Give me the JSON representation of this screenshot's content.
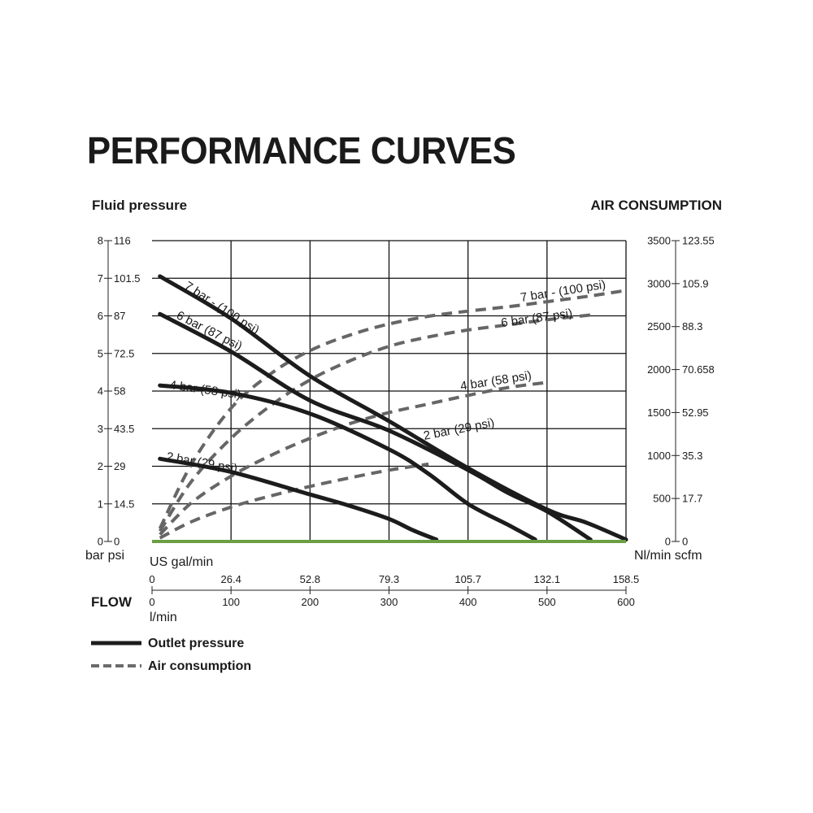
{
  "page": {
    "title": "PERFORMANCE CURVES",
    "left_axis_title": "Fluid pressure",
    "right_axis_title": "AIR CONSUMPTION"
  },
  "chart_data": {
    "type": "line",
    "title": "PERFORMANCE CURVES",
    "x_axis": {
      "xlabel": "FLOW",
      "unit_primary": "l/min",
      "unit_secondary": "US gal/min",
      "range": [
        0,
        600
      ],
      "ticks_lmin": [
        0,
        100,
        200,
        300,
        400,
        500,
        600
      ],
      "ticks_lmin_labels": [
        "0",
        "100",
        "200",
        "300",
        "400",
        "500",
        "600"
      ],
      "ticks_usgal_labels": [
        "0",
        "26.4",
        "52.8",
        "79.3",
        "105.7",
        "132.1",
        "158.5"
      ]
    },
    "y_left": {
      "ylabel": "Fluid pressure",
      "unit_primary": "bar",
      "unit_secondary": "psi",
      "range": [
        0,
        8
      ],
      "ticks_bar": [
        0,
        1,
        2,
        3,
        4,
        5,
        6,
        7,
        8
      ],
      "ticks_bar_labels": [
        "0",
        "1",
        "2",
        "3",
        "4",
        "5",
        "6",
        "7",
        "8"
      ],
      "ticks_psi_labels": [
        "0",
        "14.5",
        "29",
        "43.5",
        "58",
        "72.5",
        "87",
        "101.5",
        "116"
      ]
    },
    "y_right": {
      "ylabel": "AIR CONSUMPTION",
      "unit_primary": "Nl/min",
      "unit_secondary": "scfm",
      "range": [
        0,
        3500
      ],
      "ticks_nlmin": [
        0,
        500,
        1000,
        1500,
        2000,
        2500,
        3000,
        3500
      ],
      "ticks_nlmin_labels": [
        "0",
        "500",
        "1000",
        "1500",
        "2000",
        "2500",
        "3000",
        "3500"
      ],
      "ticks_scfm_labels": [
        "0",
        "17.7",
        "35.3",
        "52.95",
        "70.658",
        "88.3",
        "105.9",
        "123.55"
      ]
    },
    "grid": true,
    "legend": {
      "position": "bottom-left",
      "items": [
        {
          "label": "Outlet pressure",
          "style": "solid",
          "color": "#1c1c1c"
        },
        {
          "label": "Air consumption",
          "style": "dashed",
          "color": "#6b6b6b"
        }
      ]
    },
    "series": [
      {
        "name": "7 bar - (100 psi)",
        "kind": "outlet_pressure",
        "axis": "left",
        "x": [
          10,
          100,
          200,
          300,
          400,
          500,
          550,
          600
        ],
        "y": [
          7.05,
          5.93,
          4.4,
          3.2,
          1.95,
          0.85,
          0.5,
          0.05
        ]
      },
      {
        "name": "6 bar (87 psi)",
        "kind": "outlet_pressure",
        "axis": "left",
        "x": [
          10,
          100,
          200,
          300,
          400,
          450,
          500,
          555
        ],
        "y": [
          6.05,
          5.05,
          3.75,
          2.95,
          1.9,
          1.3,
          0.8,
          0.05
        ]
      },
      {
        "name": "4 bar (58 psi)",
        "kind": "outlet_pressure",
        "axis": "left",
        "x": [
          10,
          100,
          200,
          300,
          350,
          400,
          450,
          485
        ],
        "y": [
          4.15,
          3.95,
          3.4,
          2.45,
          1.8,
          1.0,
          0.45,
          0.05
        ]
      },
      {
        "name": "2 bar (29 psi)",
        "kind": "outlet_pressure",
        "axis": "left",
        "x": [
          10,
          100,
          200,
          250,
          300,
          330,
          360
        ],
        "y": [
          2.2,
          1.85,
          1.25,
          0.95,
          0.6,
          0.3,
          0.05
        ]
      },
      {
        "name": "7 bar - (100 psi)",
        "kind": "air_consumption",
        "axis": "right",
        "x": [
          10,
          50,
          100,
          150,
          200,
          250,
          300,
          350,
          400,
          450,
          500,
          550,
          600
        ],
        "y": [
          150,
          900,
          1550,
          1950,
          2220,
          2400,
          2530,
          2620,
          2680,
          2730,
          2790,
          2850,
          2920
        ]
      },
      {
        "name": "6 bar (87 psi)",
        "kind": "air_consumption",
        "axis": "right",
        "x": [
          10,
          50,
          100,
          150,
          200,
          250,
          300,
          350,
          400,
          450,
          500,
          560
        ],
        "y": [
          120,
          700,
          1200,
          1580,
          1880,
          2100,
          2270,
          2380,
          2460,
          2520,
          2580,
          2640
        ]
      },
      {
        "name": "4 bar (58 psi)",
        "kind": "air_consumption",
        "axis": "right",
        "x": [
          10,
          50,
          100,
          150,
          200,
          250,
          300,
          350,
          400,
          450,
          500
        ],
        "y": [
          80,
          450,
          760,
          1000,
          1200,
          1370,
          1500,
          1600,
          1700,
          1790,
          1850
        ]
      },
      {
        "name": "2 bar (29 psi)",
        "kind": "air_consumption",
        "axis": "right",
        "x": [
          10,
          50,
          100,
          150,
          200,
          250,
          300,
          350
        ],
        "y": [
          40,
          230,
          400,
          530,
          640,
          740,
          830,
          900
        ]
      }
    ]
  }
}
